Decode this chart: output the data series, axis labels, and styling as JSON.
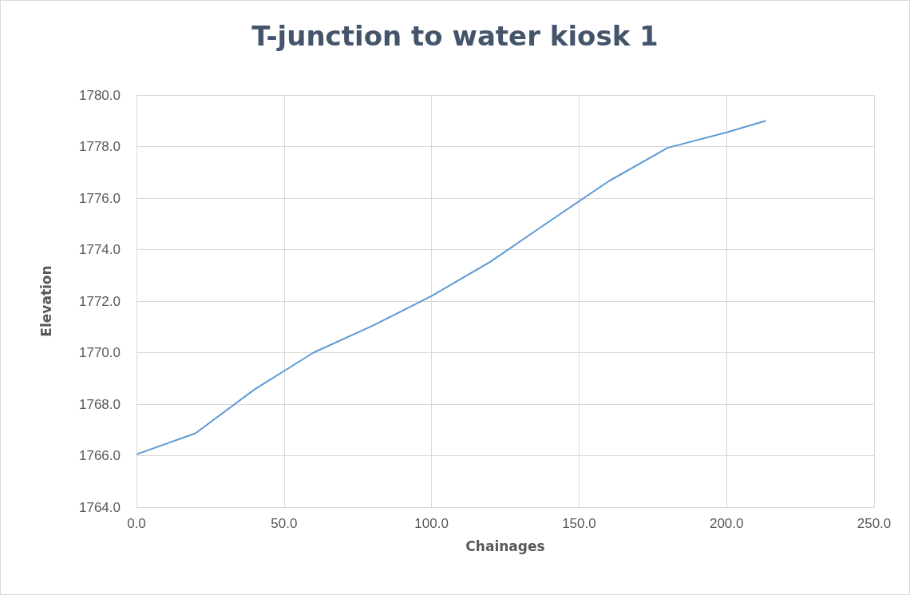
{
  "chart_data": {
    "type": "line",
    "title": "T-junction to water kiosk 1",
    "xlabel": "Chainages",
    "ylabel": "Elevation",
    "x": [
      0,
      20,
      40,
      60,
      80,
      100,
      120,
      140,
      160,
      180,
      200,
      213.3
    ],
    "series": [
      {
        "color": "#5b9bd5",
        "values": [
          1766.05,
          1766.87,
          1768.57,
          1770.0,
          1771.04,
          1772.2,
          1773.53,
          1775.1,
          1776.65,
          1777.95,
          1778.55,
          1779.0
        ]
      }
    ],
    "xlim": [
      0,
      250
    ],
    "xticks": [
      {
        "value": 0,
        "label": "0.0"
      },
      {
        "value": 50,
        "label": "50.0"
      },
      {
        "value": 100,
        "label": "100.0"
      },
      {
        "value": 150,
        "label": "150.0"
      },
      {
        "value": 200,
        "label": "200.0"
      },
      {
        "value": 250,
        "label": "250.0"
      }
    ],
    "ylim": [
      1764,
      1780
    ],
    "yticks": [
      {
        "value": 1764,
        "label": "1764.0"
      },
      {
        "value": 1766,
        "label": "1766.0"
      },
      {
        "value": 1768,
        "label": "1768.0"
      },
      {
        "value": 1770,
        "label": "1770.0"
      },
      {
        "value": 1772,
        "label": "1772.0"
      },
      {
        "value": 1774,
        "label": "1774.0"
      },
      {
        "value": 1776,
        "label": "1776.0"
      },
      {
        "value": 1778,
        "label": "1778.0"
      },
      {
        "value": 1780,
        "label": "1780.0"
      }
    ],
    "grid": true,
    "marker": "none",
    "line_style": "solid"
  }
}
